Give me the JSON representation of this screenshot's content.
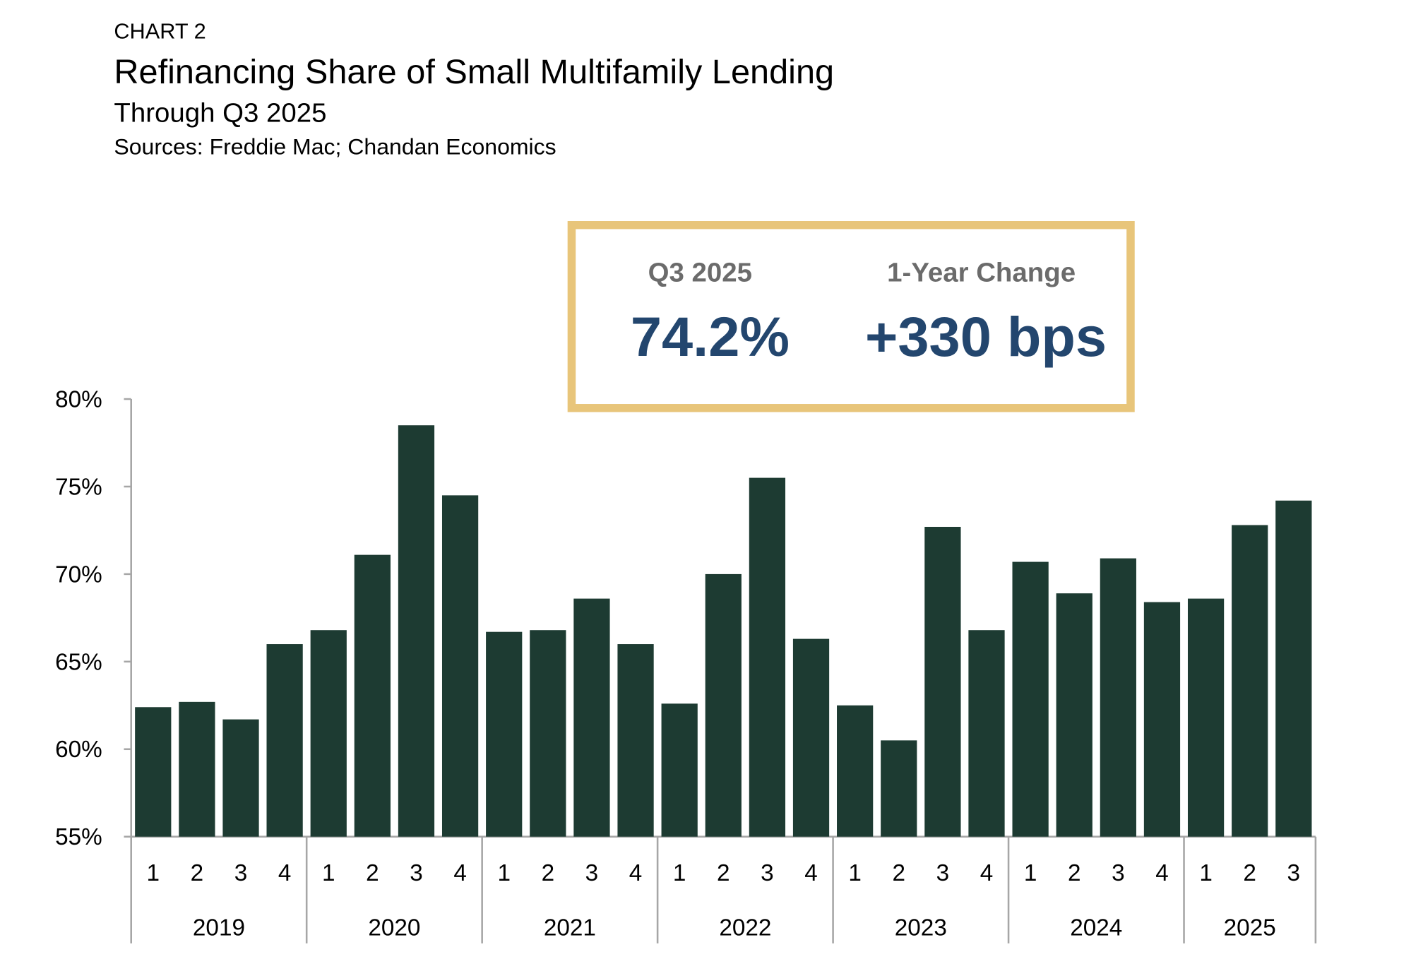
{
  "header": {
    "label": "CHART 2",
    "title": "Refinancing Share of Small Multifamily Lending",
    "subtitle": "Through Q3 2025",
    "sources": "Sources: Freddie Mac; Chandan Economics"
  },
  "kpi": {
    "left_label": "Q3 2025",
    "left_value": "74.2%",
    "right_label": "1-Year Change",
    "right_value": "+330 bps",
    "border_color": "#e8c57a",
    "value_color": "#23466e"
  },
  "chart_data": {
    "type": "bar",
    "title": "Refinancing Share of Small Multifamily Lending",
    "subtitle": "Through Q3 2025",
    "xlabel": "",
    "ylabel": "",
    "ylim": [
      55,
      80
    ],
    "yticks": [
      "55%",
      "60%",
      "65%",
      "70%",
      "75%",
      "80%"
    ],
    "ytick_values": [
      55,
      60,
      65,
      70,
      75,
      80
    ],
    "grid": false,
    "bar_color": "#1d3b32",
    "years": [
      {
        "year": "2019",
        "quarters": [
          "1",
          "2",
          "3",
          "4"
        ],
        "values": [
          62.4,
          62.7,
          61.7,
          66.0
        ]
      },
      {
        "year": "2020",
        "quarters": [
          "1",
          "2",
          "3",
          "4"
        ],
        "values": [
          66.8,
          71.1,
          78.5,
          74.5
        ]
      },
      {
        "year": "2021",
        "quarters": [
          "1",
          "2",
          "3",
          "4"
        ],
        "values": [
          66.7,
          66.8,
          68.6,
          66.0
        ]
      },
      {
        "year": "2022",
        "quarters": [
          "1",
          "2",
          "3",
          "4"
        ],
        "values": [
          62.6,
          70.0,
          75.5,
          66.3
        ]
      },
      {
        "year": "2023",
        "quarters": [
          "1",
          "2",
          "3",
          "4"
        ],
        "values": [
          62.5,
          60.5,
          72.7,
          66.8
        ]
      },
      {
        "year": "2024",
        "quarters": [
          "1",
          "2",
          "3",
          "4"
        ],
        "values": [
          70.7,
          68.9,
          70.9,
          68.4
        ]
      },
      {
        "year": "2025",
        "quarters": [
          "1",
          "2",
          "3"
        ],
        "values": [
          68.6,
          72.8,
          74.2
        ]
      }
    ]
  }
}
